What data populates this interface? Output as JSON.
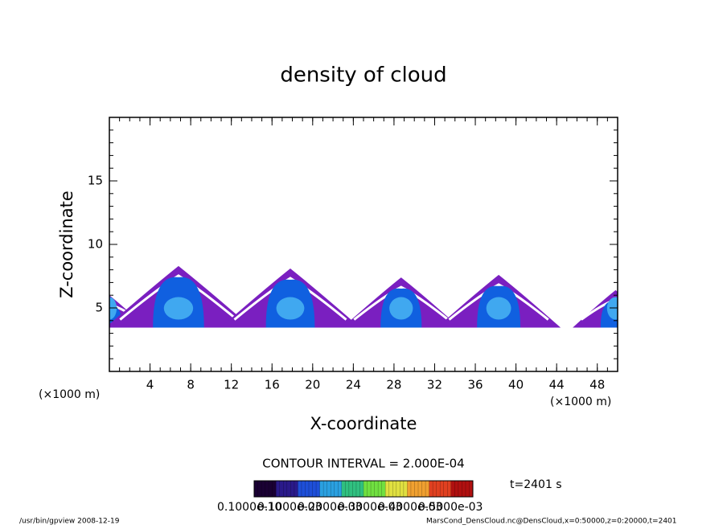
{
  "chart_data": {
    "type": "contour",
    "title": "density of cloud",
    "x_label": "X-coordinate",
    "y_label": "Z-coordinate",
    "x_unit": "(×1000 m)",
    "x_unit_right": "(×1000 m)",
    "xlim": [
      0,
      50
    ],
    "xticks": [
      4,
      8,
      12,
      16,
      20,
      24,
      28,
      32,
      36,
      40,
      44,
      48
    ],
    "ylim": [
      0,
      20
    ],
    "yticks": [
      5,
      10,
      15
    ],
    "cells": [
      {
        "x": 0,
        "top": 6.0
      },
      {
        "x": 6.8,
        "top": 8.3
      },
      {
        "x": 17.8,
        "top": 8.1
      },
      {
        "x": 28.7,
        "top": 7.4
      },
      {
        "x": 38.3,
        "top": 7.6
      },
      {
        "x": 49.8,
        "top": 6.4
      }
    ],
    "cell_base": 3.7,
    "contour_interval": "CONTOUR INTERVAL = 2.000E-04",
    "time_label": "t=2401 s",
    "colorbar_colors": [
      "#1a0033",
      "#2a1a8a",
      "#1e4fd8",
      "#2aa0e0",
      "#30c080",
      "#70e040",
      "#e0e040",
      "#f0a030",
      "#e04020",
      "#b01010"
    ],
    "colorbar_labels": [
      "0.1000e-10",
      "0.1000e-03",
      "0.2000e-03",
      "0.3000e-03",
      "0.4000e-03",
      "0.5000e-03"
    ],
    "footer_left": "/usr/bin/gpview   2008-12-19",
    "footer_right": "MarsCond_DensCloud.nc@DensCloud,x=0:50000,z=0:20000,t=2401"
  }
}
